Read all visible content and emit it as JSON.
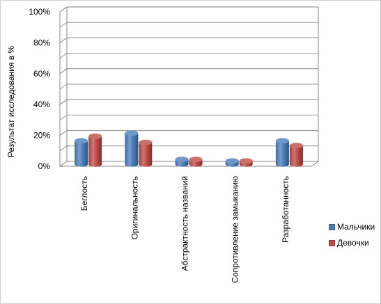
{
  "chart_data": {
    "type": "bar",
    "style": "3d-cylinder",
    "title": "",
    "xlabel": "",
    "ylabel": "Результат исследования в %",
    "ylim": [
      0,
      100
    ],
    "y_ticks": [
      "0%",
      "20%",
      "40%",
      "60%",
      "80%",
      "100%"
    ],
    "grid": true,
    "legend_position": "right",
    "categories": [
      "Беглость",
      "Оригинальность",
      "Абстрактность названий",
      "Сопротивление замыканию",
      "Разработанность"
    ],
    "series": [
      {
        "name": "Мальчики",
        "color": "#4a7ebb",
        "values": [
          15,
          20,
          3,
          2,
          15
        ]
      },
      {
        "name": "Девочки",
        "color": "#be4b48",
        "values": [
          18,
          14,
          3,
          2,
          12
        ]
      }
    ]
  }
}
